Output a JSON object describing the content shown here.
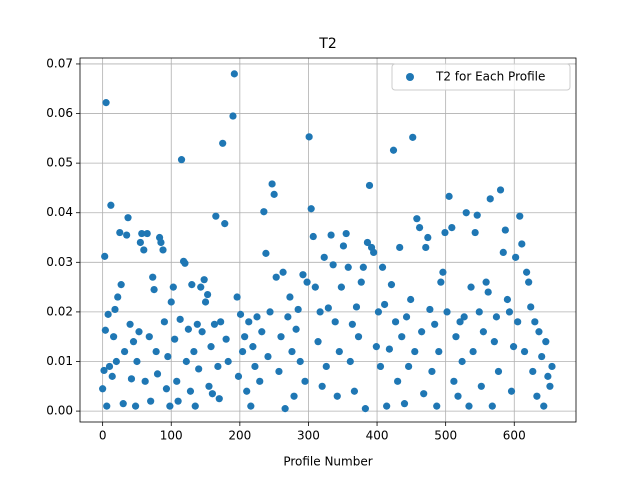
{
  "chart_data": {
    "type": "scatter",
    "title": "T2",
    "x_label": "Profile Number",
    "legend": "upper right",
    "grid": true,
    "xlim": [
      -33,
      690
    ],
    "ylim": [
      -0.0022,
      0.0712
    ],
    "xticks": [
      0,
      100,
      200,
      300,
      400,
      500,
      600
    ],
    "yticks": [
      {
        "value": 0,
        "label": "0.00"
      },
      0.01,
      0.02,
      0.03,
      0.04,
      0.05,
      0.06,
      0.07
    ],
    "series": [
      {
        "name": "T2 for Each Profile",
        "color": "#1f77b4",
        "x": [
          0,
          2,
          3,
          4,
          5,
          6,
          8,
          10,
          12,
          14,
          16,
          18,
          20,
          22,
          25,
          27,
          30,
          32,
          35,
          37,
          40,
          42,
          45,
          48,
          50,
          53,
          55,
          57,
          60,
          62,
          65,
          68,
          70,
          73,
          75,
          78,
          80,
          83,
          85,
          88,
          90,
          93,
          95,
          98,
          100,
          103,
          105,
          108,
          110,
          113,
          115,
          118,
          120,
          122,
          125,
          128,
          130,
          133,
          135,
          138,
          140,
          143,
          145,
          148,
          150,
          153,
          155,
          158,
          160,
          163,
          165,
          168,
          170,
          172,
          175,
          178,
          180,
          183,
          190,
          192,
          196,
          198,
          201,
          204,
          207,
          210,
          213,
          216,
          219,
          222,
          225,
          229,
          232,
          235,
          238,
          241,
          244,
          247,
          250,
          253,
          257,
          260,
          263,
          266,
          270,
          273,
          276,
          279,
          282,
          285,
          288,
          292,
          295,
          298,
          301,
          304,
          307,
          310,
          314,
          317,
          320,
          323,
          326,
          329,
          333,
          336,
          339,
          342,
          345,
          348,
          351,
          355,
          358,
          361,
          364,
          367,
          370,
          373,
          377,
          380,
          383,
          386,
          389,
          392,
          395,
          399,
          402,
          405,
          408,
          411,
          414,
          418,
          421,
          424,
          427,
          430,
          433,
          436,
          440,
          443,
          446,
          449,
          452,
          455,
          458,
          462,
          465,
          468,
          471,
          474,
          477,
          480,
          484,
          487,
          490,
          493,
          496,
          499,
          502,
          505,
          509,
          512,
          515,
          518,
          521,
          524,
          527,
          530,
          534,
          537,
          540,
          543,
          546,
          549,
          552,
          555,
          559,
          562,
          565,
          568,
          571,
          574,
          577,
          580,
          584,
          587,
          590,
          593,
          596,
          599,
          602,
          605,
          608,
          611,
          615,
          618,
          621,
          624,
          627,
          630,
          633,
          636,
          640,
          643,
          646,
          649,
          652,
          655
        ],
        "values": [
          0.0045,
          0.0082,
          0.0312,
          0.0163,
          0.0622,
          0.001,
          0.0195,
          0.009,
          0.0415,
          0.007,
          0.015,
          0.0205,
          0.01,
          0.023,
          0.036,
          0.0255,
          0.0015,
          0.012,
          0.0355,
          0.039,
          0.0175,
          0.0065,
          0.014,
          0.001,
          0.01,
          0.016,
          0.034,
          0.0358,
          0.0325,
          0.006,
          0.0358,
          0.015,
          0.002,
          0.027,
          0.0245,
          0.012,
          0.0075,
          0.035,
          0.034,
          0.0325,
          0.018,
          0.0045,
          0.011,
          0.001,
          0.022,
          0.025,
          0.0145,
          0.006,
          0.002,
          0.0185,
          0.0507,
          0.0302,
          0.0298,
          0.01,
          0.0165,
          0.004,
          0.0255,
          0.012,
          0.001,
          0.0175,
          0.0085,
          0.025,
          0.016,
          0.0265,
          0.022,
          0.0235,
          0.005,
          0.013,
          0.0035,
          0.0175,
          0.0393,
          0.009,
          0.0025,
          0.018,
          0.054,
          0.0378,
          0.0145,
          0.01,
          0.0595,
          0.068,
          0.023,
          0.007,
          0.0195,
          0.012,
          0.015,
          0.004,
          0.018,
          0.001,
          0.013,
          0.009,
          0.019,
          0.006,
          0.016,
          0.0402,
          0.0318,
          0.011,
          0.02,
          0.0458,
          0.0437,
          0.027,
          0.008,
          0.015,
          0.028,
          0.0005,
          0.019,
          0.023,
          0.012,
          0.003,
          0.0165,
          0.0205,
          0.01,
          0.0275,
          0.006,
          0.026,
          0.0553,
          0.0408,
          0.0352,
          0.025,
          0.014,
          0.02,
          0.005,
          0.031,
          0.009,
          0.0208,
          0.0355,
          0.0295,
          0.018,
          0.003,
          0.012,
          0.025,
          0.0333,
          0.0358,
          0.029,
          0.01,
          0.0175,
          0.004,
          0.021,
          0.015,
          0.026,
          0.029,
          0.0005,
          0.034,
          0.0455,
          0.033,
          0.032,
          0.013,
          0.02,
          0.009,
          0.029,
          0.0215,
          0.001,
          0.0125,
          0.0255,
          0.0526,
          0.018,
          0.006,
          0.033,
          0.015,
          0.0015,
          0.019,
          0.009,
          0.0225,
          0.0552,
          0.012,
          0.0388,
          0.037,
          0.016,
          0.0035,
          0.033,
          0.035,
          0.0205,
          0.008,
          0.0175,
          0.001,
          0.012,
          0.026,
          0.028,
          0.036,
          0.02,
          0.0433,
          0.037,
          0.006,
          0.015,
          0.003,
          0.018,
          0.01,
          0.019,
          0.04,
          0.001,
          0.025,
          0.012,
          0.036,
          0.0395,
          0.02,
          0.005,
          0.016,
          0.026,
          0.024,
          0.0428,
          0.001,
          0.014,
          0.019,
          0.008,
          0.0446,
          0.032,
          0.0365,
          0.0225,
          0.02,
          0.004,
          0.013,
          0.031,
          0.018,
          0.0393,
          0.0337,
          0.012,
          0.028,
          0.026,
          0.021,
          0.008,
          0.018,
          0.003,
          0.016,
          0.011,
          0.001,
          0.014,
          0.007,
          0.005,
          0.009
        ]
      }
    ]
  }
}
